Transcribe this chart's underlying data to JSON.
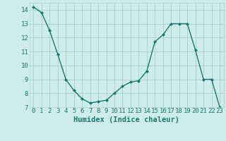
{
  "x": [
    0,
    1,
    2,
    3,
    4,
    5,
    6,
    7,
    8,
    9,
    10,
    11,
    12,
    13,
    14,
    15,
    16,
    17,
    18,
    19,
    20,
    21,
    22,
    23
  ],
  "y": [
    14.2,
    13.8,
    12.5,
    10.8,
    9.0,
    8.2,
    7.6,
    7.3,
    7.4,
    7.5,
    8.0,
    8.5,
    8.8,
    8.9,
    9.6,
    11.7,
    12.2,
    13.0,
    13.0,
    13.0,
    11.1,
    9.0,
    9.0,
    7.0
  ],
  "xlabel": "Humidex (Indice chaleur)",
  "ylim": [
    7,
    14.5
  ],
  "xlim": [
    -0.5,
    23.5
  ],
  "yticks": [
    7,
    8,
    9,
    10,
    11,
    12,
    13,
    14
  ],
  "xticks": [
    0,
    1,
    2,
    3,
    4,
    5,
    6,
    7,
    8,
    9,
    10,
    11,
    12,
    13,
    14,
    15,
    16,
    17,
    18,
    19,
    20,
    21,
    22,
    23
  ],
  "line_color": "#1a7a6e",
  "marker": "D",
  "marker_size": 2.0,
  "bg_color": "#ceecea",
  "grid_color": "#add4d0",
  "font_color": "#1a7a6e",
  "xlabel_fontsize": 7.5,
  "tick_fontsize": 6.5
}
